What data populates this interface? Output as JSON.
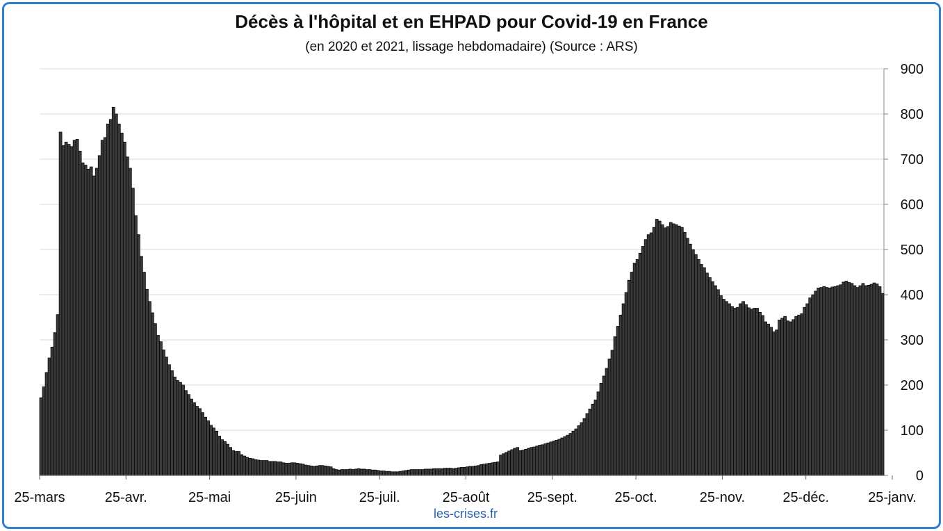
{
  "title": "Décès à l'hôpital et en EHPAD pour Covid-19 en France",
  "subtitle": "(en 2020 et 2021, lissage hebdomadaire) (Source : ARS)",
  "source_note": "les-crises.fr",
  "colors": {
    "bar": "#3a3a3a",
    "bar_edge": "#000000",
    "grid": "#d9d9d9",
    "frame": "#2f7fd0",
    "source": "#2a5fb0"
  },
  "chart_data": {
    "type": "bar",
    "title": "Décès à l'hôpital et en EHPAD pour Covid-19 en France",
    "subtitle": "(en 2020 et 2021, lissage hebdomadaire) (Source : ARS)",
    "xlabel": "",
    "ylabel": "",
    "ylim": [
      0,
      900
    ],
    "y_ticks": [
      0,
      100,
      200,
      300,
      400,
      500,
      600,
      700,
      800,
      900
    ],
    "y_axis_side": "right",
    "grid": true,
    "legend": "none",
    "x_tick_labels": [
      "25-mars",
      "25-avr.",
      "25-mai",
      "25-juin",
      "25-juil.",
      "25-août",
      "25-sept.",
      "25-oct.",
      "25-nov.",
      "25-déc.",
      "25-janv."
    ],
    "x_tick_day_index": [
      0,
      31,
      61,
      92,
      122,
      153,
      184,
      214,
      245,
      275,
      306
    ],
    "start_label": "25-mars",
    "series": [
      {
        "values": [
          172,
          196,
          228,
          260,
          284,
          316,
          356,
          760,
          730,
          738,
          733,
          728,
          742,
          744,
          718,
          692,
          687,
          678,
          683,
          663,
          680,
          708,
          742,
          748,
          778,
          788,
          815,
          800,
          778,
          758,
          738,
          705,
          680,
          636,
          575,
          533,
          485,
          450,
          412,
          385,
          360,
          336,
          310,
          296,
          278,
          262,
          245,
          232,
          218,
          210,
          206,
          200,
          188,
          179,
          169,
          161,
          153,
          148,
          139,
          129,
          121,
          111,
          105,
          98,
          87,
          79,
          75,
          69,
          62,
          55,
          53,
          53,
          46,
          43,
          40,
          38,
          37,
          35,
          34,
          33,
          33,
          33,
          31,
          31,
          31,
          30,
          30,
          28,
          27,
          27,
          28,
          28,
          27,
          26,
          25,
          23,
          22,
          21,
          20,
          21,
          22,
          22,
          21,
          20,
          19,
          15,
          13,
          12,
          13,
          13,
          13,
          14,
          13,
          14,
          15,
          14,
          14,
          13,
          13,
          12,
          12,
          11,
          10,
          10,
          9,
          9,
          8,
          8,
          8,
          9,
          10,
          11,
          12,
          13,
          13,
          13,
          13,
          13,
          14,
          14,
          14,
          15,
          15,
          15,
          15,
          16,
          16,
          16,
          15,
          16,
          17,
          18,
          18,
          19,
          20,
          20,
          21,
          22,
          24,
          25,
          26,
          27,
          28,
          29,
          30,
          45,
          48,
          51,
          54,
          57,
          60,
          62,
          55,
          56,
          58,
          60,
          62,
          63,
          65,
          67,
          68,
          70,
          72,
          74,
          76,
          78,
          80,
          83,
          86,
          89,
          93,
          98,
          103,
          110,
          117,
          126,
          137,
          147,
          158,
          167,
          185,
          204,
          220,
          237,
          258,
          277,
          307,
          330,
          355,
          380,
          405,
          432,
          450,
          470,
          478,
          492,
          507,
          522,
          533,
          537,
          549,
          567,
          563,
          555,
          548,
          551,
          560,
          557,
          555,
          552,
          549,
          538,
          525,
          512,
          500,
          489,
          478,
          467,
          460,
          448,
          438,
          429,
          420,
          411,
          398,
          390,
          385,
          380,
          374,
          370,
          372,
          380,
          385,
          378,
          371,
          368,
          370,
          370,
          361,
          354,
          340,
          335,
          328,
          318,
          322,
          344,
          348,
          352,
          342,
          340,
          345,
          352,
          355,
          358,
          372,
          380,
          393,
          400,
          408,
          415,
          416,
          418,
          416,
          415,
          417,
          418,
          420,
          422,
          428,
          430,
          427,
          425,
          420,
          416,
          420,
          425,
          420,
          421,
          423,
          426,
          424,
          418,
          403
        ]
      }
    ]
  }
}
